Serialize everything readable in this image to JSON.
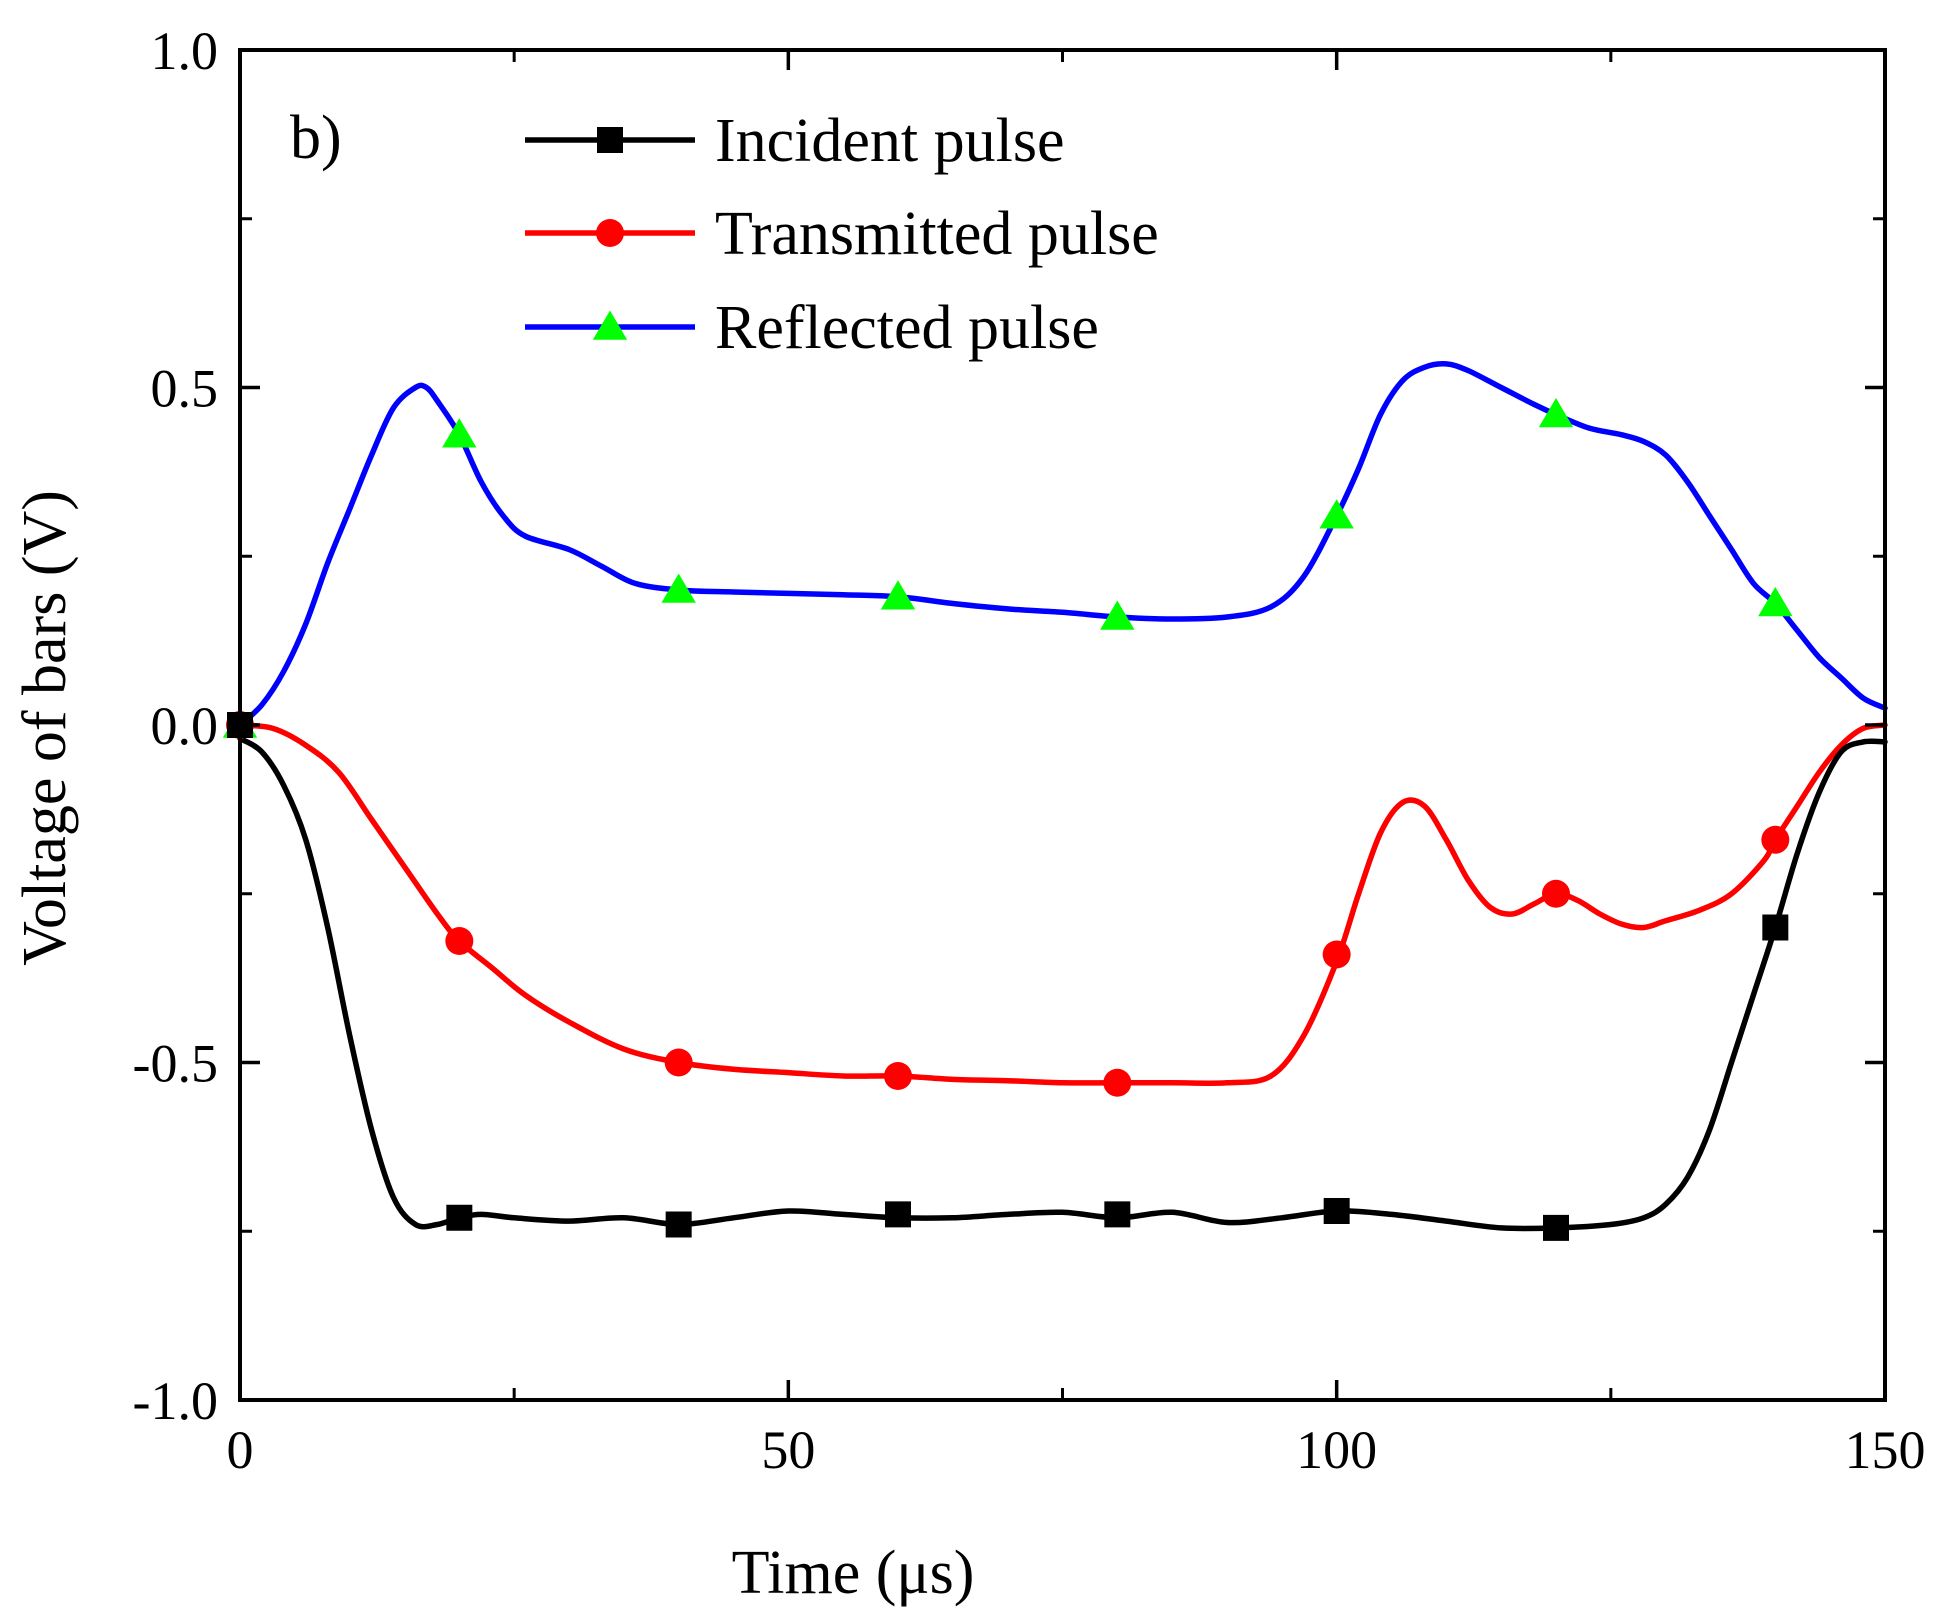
{
  "chart_data": {
    "type": "line",
    "panel_label": "b)",
    "xlabel": "Time (μs)",
    "ylabel": "Voltage of bars (V)",
    "xlim": [
      0,
      150
    ],
    "ylim": [
      -1.0,
      1.0
    ],
    "x_ticks": [
      0,
      50,
      100,
      150
    ],
    "x_minor_ticks": [
      25,
      75,
      125
    ],
    "y_ticks": [
      1.0,
      0.5,
      0.0,
      -0.5,
      -1.0
    ],
    "y_tick_labels": [
      "1.0",
      "0.5",
      "0.0",
      "-0.5",
      "-1.0"
    ],
    "y_minor_ticks": [
      0.75,
      0.25,
      -0.25,
      -0.75
    ],
    "legend_position": "top-center",
    "series": [
      {
        "name": "Incident pulse",
        "color": "#000000",
        "marker": "square",
        "marker_color": "#000000",
        "line": [
          [
            0,
            -0.02
          ],
          [
            2,
            -0.04
          ],
          [
            4,
            -0.09
          ],
          [
            6,
            -0.17
          ],
          [
            8,
            -0.3
          ],
          [
            10,
            -0.46
          ],
          [
            12,
            -0.6
          ],
          [
            14,
            -0.7
          ],
          [
            16,
            -0.74
          ],
          [
            18,
            -0.74
          ],
          [
            20,
            -0.73
          ],
          [
            22,
            -0.725
          ],
          [
            25,
            -0.73
          ],
          [
            30,
            -0.735
          ],
          [
            35,
            -0.73
          ],
          [
            40,
            -0.74
          ],
          [
            45,
            -0.73
          ],
          [
            50,
            -0.72
          ],
          [
            55,
            -0.725
          ],
          [
            60,
            -0.73
          ],
          [
            65,
            -0.73
          ],
          [
            70,
            -0.725
          ],
          [
            75,
            -0.722
          ],
          [
            80,
            -0.73
          ],
          [
            85,
            -0.722
          ],
          [
            90,
            -0.737
          ],
          [
            95,
            -0.73
          ],
          [
            100,
            -0.72
          ],
          [
            105,
            -0.725
          ],
          [
            110,
            -0.735
          ],
          [
            115,
            -0.745
          ],
          [
            120,
            -0.745
          ],
          [
            125,
            -0.74
          ],
          [
            128,
            -0.73
          ],
          [
            130,
            -0.71
          ],
          [
            132,
            -0.67
          ],
          [
            134,
            -0.6
          ],
          [
            136,
            -0.5
          ],
          [
            138,
            -0.4
          ],
          [
            140,
            -0.3
          ],
          [
            142,
            -0.19
          ],
          [
            144,
            -0.1
          ],
          [
            146,
            -0.04
          ],
          [
            148,
            -0.025
          ],
          [
            150,
            -0.025
          ]
        ],
        "markers": [
          [
            0,
            0.0
          ],
          [
            20,
            -0.73
          ],
          [
            40,
            -0.74
          ],
          [
            60,
            -0.725
          ],
          [
            80,
            -0.725
          ],
          [
            100,
            -0.72
          ],
          [
            120,
            -0.745
          ],
          [
            140,
            -0.3
          ]
        ]
      },
      {
        "name": "Transmitted pulse",
        "color": "#ff0000",
        "marker": "circle",
        "marker_color": "#ff0000",
        "line": [
          [
            0,
            0.0
          ],
          [
            3,
            -0.005
          ],
          [
            6,
            -0.03
          ],
          [
            9,
            -0.07
          ],
          [
            12,
            -0.14
          ],
          [
            15,
            -0.21
          ],
          [
            18,
            -0.28
          ],
          [
            20,
            -0.32
          ],
          [
            23,
            -0.36
          ],
          [
            26,
            -0.4
          ],
          [
            30,
            -0.44
          ],
          [
            35,
            -0.48
          ],
          [
            40,
            -0.5
          ],
          [
            45,
            -0.51
          ],
          [
            50,
            -0.515
          ],
          [
            55,
            -0.52
          ],
          [
            60,
            -0.52
          ],
          [
            65,
            -0.525
          ],
          [
            70,
            -0.527
          ],
          [
            75,
            -0.53
          ],
          [
            80,
            -0.53
          ],
          [
            85,
            -0.53
          ],
          [
            90,
            -0.53
          ],
          [
            94,
            -0.52
          ],
          [
            97,
            -0.46
          ],
          [
            100,
            -0.35
          ],
          [
            102,
            -0.25
          ],
          [
            104,
            -0.16
          ],
          [
            106,
            -0.115
          ],
          [
            108,
            -0.12
          ],
          [
            110,
            -0.17
          ],
          [
            112,
            -0.23
          ],
          [
            114,
            -0.27
          ],
          [
            116,
            -0.28
          ],
          [
            118,
            -0.265
          ],
          [
            120,
            -0.25
          ],
          [
            122,
            -0.26
          ],
          [
            124,
            -0.28
          ],
          [
            126,
            -0.295
          ],
          [
            128,
            -0.3
          ],
          [
            130,
            -0.29
          ],
          [
            133,
            -0.275
          ],
          [
            136,
            -0.25
          ],
          [
            139,
            -0.2
          ],
          [
            140,
            -0.17
          ],
          [
            142,
            -0.12
          ],
          [
            144,
            -0.07
          ],
          [
            146,
            -0.03
          ],
          [
            148,
            -0.005
          ],
          [
            150,
            0.0
          ]
        ],
        "markers": [
          [
            0,
            0.0
          ],
          [
            20,
            -0.32
          ],
          [
            40,
            -0.5
          ],
          [
            60,
            -0.52
          ],
          [
            80,
            -0.53
          ],
          [
            100,
            -0.34
          ],
          [
            120,
            -0.25
          ],
          [
            140,
            -0.17
          ]
        ]
      },
      {
        "name": "Reflected pulse",
        "color": "#0000ff",
        "marker": "triangle",
        "marker_color": "#00ff00",
        "line": [
          [
            0,
            0.0
          ],
          [
            2,
            0.03
          ],
          [
            4,
            0.08
          ],
          [
            6,
            0.15
          ],
          [
            8,
            0.24
          ],
          [
            10,
            0.32
          ],
          [
            12,
            0.4
          ],
          [
            14,
            0.47
          ],
          [
            16,
            0.5
          ],
          [
            17,
            0.5
          ],
          [
            18,
            0.48
          ],
          [
            20,
            0.43
          ],
          [
            22,
            0.36
          ],
          [
            24,
            0.31
          ],
          [
            26,
            0.28
          ],
          [
            30,
            0.26
          ],
          [
            33,
            0.235
          ],
          [
            36,
            0.21
          ],
          [
            40,
            0.2
          ],
          [
            45,
            0.197
          ],
          [
            50,
            0.195
          ],
          [
            55,
            0.193
          ],
          [
            60,
            0.19
          ],
          [
            65,
            0.18
          ],
          [
            70,
            0.172
          ],
          [
            75,
            0.167
          ],
          [
            80,
            0.16
          ],
          [
            85,
            0.157
          ],
          [
            90,
            0.16
          ],
          [
            94,
            0.175
          ],
          [
            97,
            0.22
          ],
          [
            100,
            0.31
          ],
          [
            102,
            0.38
          ],
          [
            104,
            0.46
          ],
          [
            106,
            0.51
          ],
          [
            108,
            0.53
          ],
          [
            110,
            0.535
          ],
          [
            112,
            0.525
          ],
          [
            115,
            0.5
          ],
          [
            118,
            0.475
          ],
          [
            120,
            0.46
          ],
          [
            123,
            0.44
          ],
          [
            126,
            0.43
          ],
          [
            128,
            0.42
          ],
          [
            130,
            0.4
          ],
          [
            132,
            0.36
          ],
          [
            134,
            0.31
          ],
          [
            136,
            0.26
          ],
          [
            138,
            0.21
          ],
          [
            140,
            0.18
          ],
          [
            142,
            0.14
          ],
          [
            144,
            0.1
          ],
          [
            146,
            0.07
          ],
          [
            148,
            0.04
          ],
          [
            150,
            0.025
          ]
        ],
        "markers": [
          [
            0,
            0.0
          ],
          [
            20,
            0.43
          ],
          [
            40,
            0.2
          ],
          [
            60,
            0.19
          ],
          [
            80,
            0.16
          ],
          [
            100,
            0.31
          ],
          [
            120,
            0.46
          ],
          [
            140,
            0.18
          ]
        ]
      }
    ]
  }
}
